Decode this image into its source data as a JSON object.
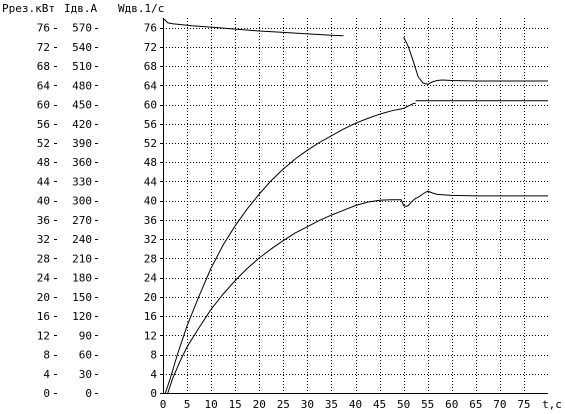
{
  "chart_data": {
    "type": "line",
    "header_labels": [
      "Ррез.кВт",
      "Iдв.А",
      "Wдв.1/с"
    ],
    "xlabel": "t,с",
    "xlim": [
      0,
      80
    ],
    "ylim": [
      0,
      78
    ],
    "x_ticks": [
      "0",
      "5",
      "10",
      "15",
      "20",
      "25",
      "30",
      "35",
      "40",
      "45",
      "50",
      "55",
      "60",
      "65",
      "70",
      "75"
    ],
    "axes": [
      {
        "name": "Ррез.кВт",
        "ticks": [
          "0",
          "4",
          "8",
          "12",
          "16",
          "20",
          "24",
          "28",
          "32",
          "36",
          "40",
          "44",
          "48",
          "52",
          "56",
          "60",
          "64",
          "68",
          "72",
          "76"
        ]
      },
      {
        "name": "Iдв.А",
        "ticks": [
          "0",
          "30",
          "60",
          "90",
          "120",
          "150",
          "180",
          "210",
          "240",
          "270",
          "300",
          "330",
          "360",
          "390",
          "420",
          "450",
          "480",
          "510",
          "540",
          "570"
        ]
      },
      {
        "name": "Wдв.1/с",
        "ticks": [
          "0",
          "4",
          "8",
          "12",
          "16",
          "20",
          "24",
          "28",
          "32",
          "36",
          "40",
          "44",
          "48",
          "52",
          "56",
          "60",
          "64",
          "68",
          "72",
          "76"
        ]
      }
    ],
    "grid": true,
    "series": [
      {
        "x": [
          0,
          1,
          2,
          4,
          6,
          10,
          15,
          20,
          25,
          30,
          35,
          37.5
        ],
        "y": [
          78,
          77,
          76.8,
          76.6,
          76.4,
          76.1,
          75.7,
          75.3,
          75.0,
          74.7,
          74.4,
          74.3
        ]
      },
      {
        "x": [
          50,
          51,
          52,
          53,
          54,
          55,
          56,
          57,
          58,
          60,
          65,
          70,
          75,
          80
        ],
        "y": [
          74,
          72,
          69,
          65.8,
          64.5,
          64.2,
          64.7,
          65.0,
          65.1,
          65.0,
          64.9,
          64.9,
          64.9,
          64.9
        ]
      },
      {
        "x": [
          0.5,
          1.5,
          3,
          5,
          7.5,
          10,
          12.5,
          15,
          17.5,
          20,
          22.5,
          25,
          27.5,
          30,
          32.5,
          35,
          37.5,
          40,
          42.5,
          45,
          47.5,
          50,
          51,
          52,
          52.5
        ],
        "y": [
          0,
          3,
          8,
          14,
          20.2,
          26,
          30.8,
          34.8,
          38.3,
          41.4,
          44.2,
          46.6,
          48.7,
          50.5,
          52.1,
          53.5,
          54.9,
          56.1,
          57.1,
          58.0,
          58.7,
          59.2,
          59.7,
          60.2,
          60.3
        ]
      },
      {
        "x": [
          52.5,
          55,
          60,
          65,
          70,
          75,
          80
        ],
        "y": [
          60.8,
          60.8,
          60.8,
          60.8,
          60.8,
          60.8,
          60.8
        ]
      },
      {
        "x": [
          1,
          2,
          3.5,
          5,
          7.5,
          10,
          12.5,
          15,
          17.5,
          20,
          22.5,
          25,
          27.5,
          30,
          32.5,
          35,
          37.5,
          40,
          42.5,
          45,
          47.5,
          49.5,
          50,
          50.5,
          51,
          51.5,
          52,
          52.5,
          53,
          54,
          55,
          56,
          57,
          60,
          65,
          70,
          75,
          80
        ],
        "y": [
          0,
          3,
          6.5,
          9.6,
          13.6,
          17.4,
          20.6,
          23.4,
          25.9,
          28.1,
          30.0,
          31.7,
          33.3,
          34.6,
          35.9,
          37.0,
          38.0,
          39.0,
          39.7,
          40.1,
          40.2,
          40.2,
          39.0,
          38.8,
          39.0,
          39.6,
          40.1,
          40.5,
          40.7,
          41.4,
          42.0,
          41.6,
          41.3,
          41.1,
          41.0,
          41.0,
          41.0,
          41.0
        ]
      }
    ]
  }
}
